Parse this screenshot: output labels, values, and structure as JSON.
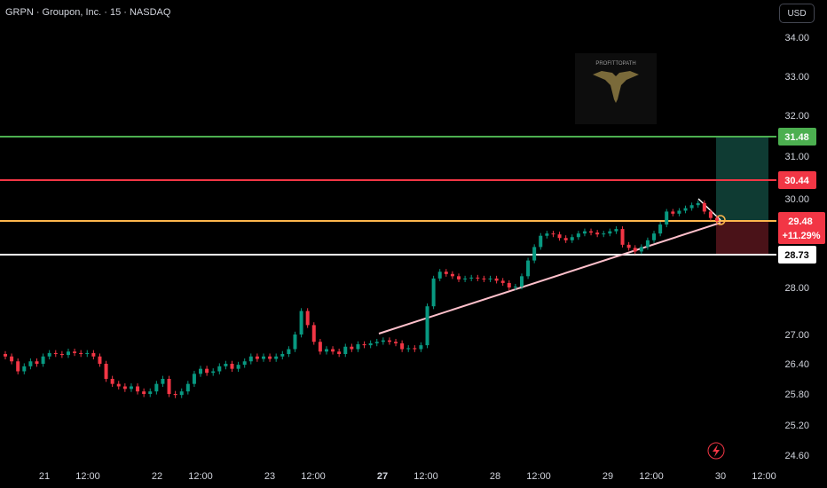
{
  "header": {
    "symbol": "GRPN · Groupon, Inc. · 15 · NASDAQ",
    "currency": "USD"
  },
  "watermark": {
    "text": "PROFITTOPATH"
  },
  "chart_data": {
    "type": "candlestick",
    "y_ticks": [
      "34.00",
      "33.00",
      "32.00",
      "31.00",
      "30.00",
      "28.00",
      "27.00",
      "26.40",
      "25.80",
      "25.20",
      "24.60"
    ],
    "x_ticks": [
      {
        "label": "21",
        "bold": false
      },
      {
        "label": "12:00",
        "bold": false
      },
      {
        "label": "22",
        "bold": false
      },
      {
        "label": "12:00",
        "bold": false
      },
      {
        "label": "23",
        "bold": false
      },
      {
        "label": "12:00",
        "bold": false
      },
      {
        "label": "27",
        "bold": true
      },
      {
        "label": "12:00",
        "bold": false
      },
      {
        "label": "28",
        "bold": false
      },
      {
        "label": "12:00",
        "bold": false
      },
      {
        "label": "29",
        "bold": false
      },
      {
        "label": "12:00",
        "bold": false
      },
      {
        "label": "30",
        "bold": false
      },
      {
        "label": "12:00",
        "bold": false
      }
    ],
    "levels": [
      {
        "name": "green",
        "value": "31.48",
        "color": "#4caf50"
      },
      {
        "name": "red",
        "value": "30.44",
        "color": "#f23645"
      },
      {
        "name": "orange",
        "value": "29.48",
        "color": "#ffb74d"
      },
      {
        "name": "white",
        "value": "28.73",
        "color": "#ffffff"
      }
    ],
    "last_price": {
      "value": "29.48",
      "change": "+11.29%"
    },
    "closes": [
      26.55,
      26.45,
      26.25,
      26.35,
      26.45,
      26.4,
      26.55,
      26.62,
      26.6,
      26.58,
      26.65,
      26.62,
      26.6,
      26.62,
      26.55,
      26.4,
      26.1,
      26.0,
      25.95,
      25.9,
      25.95,
      25.85,
      25.8,
      25.85,
      26.0,
      26.1,
      25.8,
      25.78,
      25.85,
      26.0,
      26.2,
      26.3,
      26.22,
      26.25,
      26.35,
      26.4,
      26.3,
      26.38,
      26.45,
      26.55,
      26.5,
      26.55,
      26.5,
      26.55,
      26.6,
      26.7,
      27.0,
      27.5,
      27.2,
      26.85,
      26.65,
      26.7,
      26.65,
      26.6,
      26.75,
      26.7,
      26.8,
      26.78,
      26.82,
      26.85,
      26.88,
      26.85,
      26.82,
      26.7,
      26.72,
      26.7,
      26.78,
      27.6,
      28.2,
      28.35,
      28.3,
      28.25,
      28.18,
      28.2,
      28.22,
      28.2,
      28.18,
      28.2,
      28.15,
      28.1,
      28.0,
      28.02,
      28.25,
      28.6,
      28.9,
      29.15,
      29.2,
      29.18,
      29.1,
      29.05,
      29.12,
      29.2,
      29.25,
      29.22,
      29.18,
      29.2,
      29.25,
      29.3,
      28.95,
      28.88,
      28.8,
      28.9,
      29.05,
      29.2,
      29.4,
      29.7,
      29.65,
      29.72,
      29.78,
      29.85,
      29.9,
      29.7,
      29.55,
      29.48
    ]
  }
}
